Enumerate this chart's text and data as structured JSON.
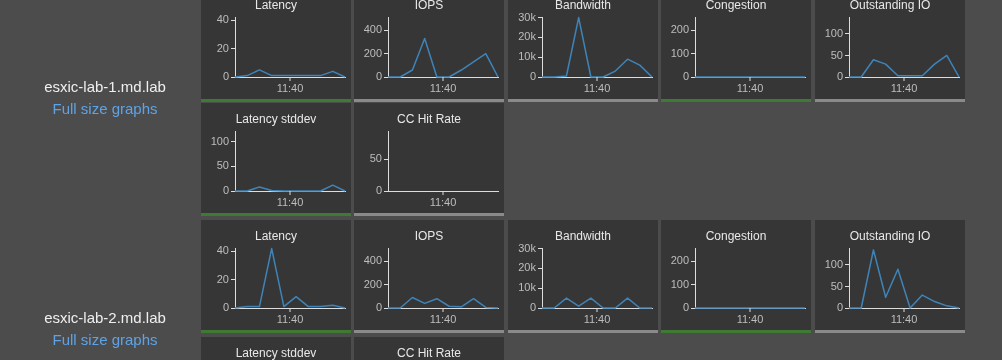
{
  "chart_data": [
    {
      "type": "line",
      "title": "Latency",
      "annotations": [
        "11:40",
        "esxic-lab-1.md.lab",
        "Full size graphs"
      ],
      "categories": [
        null,
        null,
        null,
        null,
        null,
        null,
        null,
        null,
        null,
        null
      ],
      "values": [
        0,
        1,
        5,
        1,
        1,
        1,
        1,
        1,
        4,
        0
      ],
      "color": "#3f84b8",
      "ylim": [
        0,
        42
      ],
      "yticks": [
        0,
        20,
        40
      ],
      "grid": false,
      "marker": "none"
    },
    {
      "type": "line",
      "title": "IOPS",
      "annotations": [
        "11:40"
      ],
      "categories": [
        null,
        null,
        null,
        null,
        null,
        null,
        null,
        null,
        null,
        null
      ],
      "values": [
        0,
        0,
        60,
        330,
        0,
        0,
        60,
        130,
        200,
        0
      ],
      "color": "#3f84b8",
      "ylim": [
        0,
        510
      ],
      "yticks": [
        0,
        200,
        400
      ],
      "grid": false,
      "marker": "none"
    },
    {
      "type": "line",
      "title": "Bandwidth",
      "annotations": [
        "11:40"
      ],
      "categories": [
        null,
        null,
        null,
        null,
        null,
        null,
        null,
        null,
        null,
        null
      ],
      "values": [
        0,
        0,
        500,
        30000,
        0,
        0,
        3000,
        9000,
        6000,
        0
      ],
      "color": "#3f84b8",
      "ylim": [
        0,
        30000
      ],
      "yticks": [
        0,
        {
          "value": 10000,
          "label": "10k"
        },
        {
          "value": 20000,
          "label": "20k"
        },
        {
          "value": 30000,
          "label": "30k"
        }
      ],
      "grid": false,
      "marker": "none"
    },
    {
      "type": "line",
      "title": "Congestion",
      "annotations": [
        "11:40"
      ],
      "categories": [
        null,
        null,
        null,
        null,
        null,
        null,
        null,
        null,
        null,
        null
      ],
      "values": [
        0,
        0,
        0,
        0,
        0,
        0,
        0,
        0,
        0,
        0
      ],
      "color": "#3f84b8",
      "ylim": [
        0,
        255
      ],
      "yticks": [
        0,
        100,
        200
      ],
      "grid": false,
      "marker": "none"
    },
    {
      "type": "line",
      "title": "Outstanding IO",
      "annotations": [
        "11:40"
      ],
      "categories": [
        null,
        null,
        null,
        null,
        null,
        null,
        null,
        null,
        null,
        null
      ],
      "values": [
        0,
        0,
        40,
        30,
        3,
        3,
        3,
        30,
        50,
        0
      ],
      "color": "#3f84b8",
      "ylim": [
        0,
        138
      ],
      "yticks": [
        0,
        50,
        100
      ],
      "grid": false,
      "marker": "none"
    },
    {
      "type": "line",
      "title": "Latency stddev",
      "annotations": [
        "11:40"
      ],
      "categories": [
        null,
        null,
        null,
        null,
        null,
        null,
        null,
        null,
        null,
        null
      ],
      "values": [
        0,
        0,
        8,
        1,
        0,
        0,
        0,
        0,
        12,
        0
      ],
      "color": "#3f84b8",
      "ylim": [
        0,
        120
      ],
      "yticks": [
        0,
        50,
        100
      ],
      "grid": false,
      "marker": "none"
    },
    {
      "type": "line",
      "title": "CC Hit Rate",
      "annotations": [
        "11:40"
      ],
      "categories": [
        null,
        null,
        null,
        null,
        null,
        null,
        null,
        null,
        null,
        null
      ],
      "values": [
        null,
        null,
        null,
        null,
        null,
        null,
        null,
        null,
        null,
        null
      ],
      "color": "#3f84b8",
      "ylim": [
        0,
        93
      ],
      "yticks": [
        0,
        50
      ],
      "grid": false,
      "marker": "none"
    },
    {
      "type": "line",
      "title": "Latency",
      "annotations": [
        "11:40",
        "esxic-lab-2.md.lab",
        "Full size graphs"
      ],
      "categories": [
        null,
        null,
        null,
        null,
        null,
        null,
        null,
        null,
        null,
        null
      ],
      "values": [
        0,
        1,
        1,
        42,
        1,
        8,
        1,
        1,
        2,
        0
      ],
      "color": "#3f84b8",
      "ylim": [
        0,
        42
      ],
      "yticks": [
        0,
        20,
        40
      ],
      "grid": false,
      "marker": "none"
    },
    {
      "type": "line",
      "title": "IOPS",
      "annotations": [
        "11:40"
      ],
      "categories": [
        null,
        null,
        null,
        null,
        null,
        null,
        null,
        null,
        null,
        null
      ],
      "values": [
        0,
        0,
        90,
        40,
        80,
        15,
        10,
        80,
        5,
        0
      ],
      "color": "#3f84b8",
      "ylim": [
        0,
        510
      ],
      "yticks": [
        0,
        200,
        400
      ],
      "grid": false,
      "marker": "none"
    },
    {
      "type": "line",
      "title": "Bandwidth",
      "annotations": [
        "11:40"
      ],
      "categories": [
        null,
        null,
        null,
        null,
        null,
        null,
        null,
        null,
        null,
        null
      ],
      "values": [
        0,
        0,
        5000,
        1000,
        5000,
        0,
        0,
        5000,
        0,
        0
      ],
      "color": "#3f84b8",
      "ylim": [
        0,
        30000
      ],
      "yticks": [
        0,
        {
          "value": 10000,
          "label": "10k"
        },
        {
          "value": 20000,
          "label": "20k"
        },
        {
          "value": 30000,
          "label": "30k"
        }
      ],
      "grid": false,
      "marker": "none"
    },
    {
      "type": "line",
      "title": "Congestion",
      "annotations": [
        "11:40"
      ],
      "categories": [
        null,
        null,
        null,
        null,
        null,
        null,
        null,
        null,
        null,
        null
      ],
      "values": [
        0,
        0,
        0,
        0,
        0,
        0,
        0,
        0,
        0,
        0
      ],
      "color": "#3f84b8",
      "ylim": [
        0,
        255
      ],
      "yticks": [
        0,
        100,
        200
      ],
      "grid": false,
      "marker": "none"
    },
    {
      "type": "line",
      "title": "Outstanding IO",
      "annotations": [
        "11:40"
      ],
      "categories": [
        null,
        null,
        null,
        null,
        null,
        null,
        null,
        null,
        null,
        null
      ],
      "values": [
        0,
        0,
        135,
        25,
        90,
        0,
        30,
        15,
        5,
        0
      ],
      "color": "#3f84b8",
      "ylim": [
        0,
        138
      ],
      "yticks": [
        0,
        50,
        100
      ],
      "grid": false,
      "marker": "none"
    },
    {
      "type": "other",
      "title": "Latency stddev"
    },
    {
      "type": "other",
      "title": "CC Hit Rate"
    }
  ]
}
